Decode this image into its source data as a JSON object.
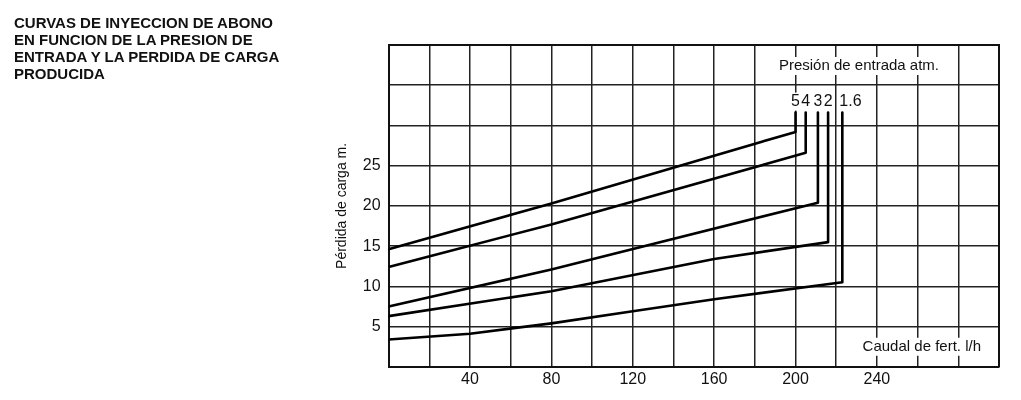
{
  "chart_data": {
    "type": "line",
    "title": "CURVAS DE INYECCION DE ABONO EN FUNCION DE LA PRESION DE ENTRADA Y LA PERDIDA DE CARGA PRODUCIDA",
    "xlabel": "Caudal de fert. l/h",
    "ylabel": "Pérdida de carga m.",
    "legend_title": "Presión de entrada atm.",
    "series": [
      {
        "name": "5",
        "color": "#000000",
        "x": [
          0,
          80,
          200,
          200
        ],
        "values": [
          14.6,
          20.3,
          29.2,
          31.6
        ]
      },
      {
        "name": "4",
        "color": "#000000",
        "x": [
          0,
          80,
          205,
          205
        ],
        "values": [
          12.4,
          17.7,
          26.6,
          31.6
        ]
      },
      {
        "name": "3",
        "color": "#000000",
        "x": [
          0,
          80,
          211,
          211
        ],
        "values": [
          7.5,
          12.1,
          20.4,
          31.6
        ]
      },
      {
        "name": "2",
        "color": "#000000",
        "x": [
          0,
          80,
          160,
          216,
          216
        ],
        "values": [
          6.3,
          9.4,
          13.4,
          15.5,
          31.6
        ]
      },
      {
        "name": "1.6",
        "color": "#000000",
        "x": [
          0,
          40,
          80,
          120,
          160,
          223,
          223
        ],
        "values": [
          3.4,
          4.1,
          5.4,
          6.9,
          8.4,
          10.5,
          31.6
        ]
      }
    ],
    "xlim": [
      0,
      300
    ],
    "xticks": [
      {
        "value": 20,
        "label": null
      },
      40,
      {
        "value": 60,
        "label": null
      },
      80,
      {
        "value": 100,
        "label": null
      },
      120,
      {
        "value": 140,
        "label": null
      },
      160,
      {
        "value": 180,
        "label": null
      },
      200,
      {
        "value": 220,
        "label": null
      },
      240,
      {
        "value": 260,
        "label": null
      },
      {
        "value": 280,
        "label": null
      }
    ],
    "ylim": [
      0,
      40
    ],
    "yticks": [
      5,
      10,
      15,
      20,
      25,
      {
        "value": 30,
        "label": null
      },
      {
        "value": 35,
        "label": null
      }
    ],
    "grid": true,
    "legend": false,
    "marker": "none",
    "line_style": "solid"
  }
}
